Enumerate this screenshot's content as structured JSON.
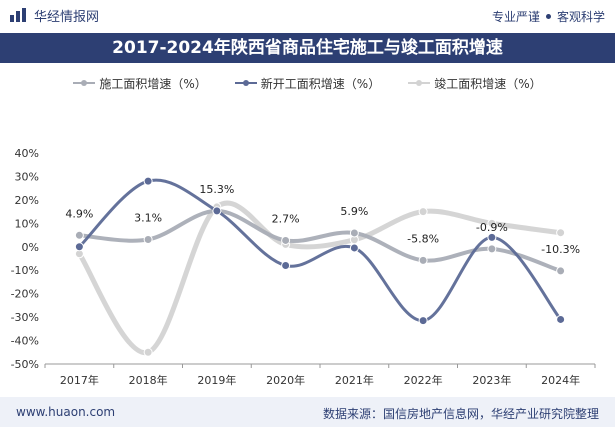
{
  "header": {
    "brand_name": "华经情报网",
    "slogan_left": "专业严谨",
    "slogan_right": "客观科学"
  },
  "footer": {
    "url": "www.huaon.com",
    "source": "数据来源：国信房地产信息网，华经产业研究院整理"
  },
  "colors": {
    "brand": "#2d3f73",
    "series_construction": "#a9adb6",
    "series_new_starts": "#5c6a96",
    "series_completion": "#d3d3d3"
  },
  "chart_data": {
    "type": "line",
    "title": "2017-2024年陕西省商品住宅施工与竣工面积增速",
    "categories": [
      "2017年",
      "2018年",
      "2019年",
      "2020年",
      "2021年",
      "2022年",
      "2023年",
      "2024年"
    ],
    "y_ticks": [
      "40%",
      "30%",
      "20%",
      "10%",
      "0%",
      "-10%",
      "-20%",
      "-30%",
      "-40%",
      "-50%"
    ],
    "ylim": [
      -50,
      40
    ],
    "series": [
      {
        "name": "施工面积增速（%）",
        "values": [
          4.9,
          3.1,
          15.3,
          2.7,
          5.9,
          -5.8,
          -0.9,
          -10.3
        ],
        "labels": [
          "4.9%",
          "3.1%",
          "15.3%",
          "2.7%",
          "5.9%",
          "-5.8%",
          "-0.9%",
          "-10.3%"
        ]
      },
      {
        "name": "新开工面积增速（%）",
        "values": [
          0,
          28,
          15.3,
          -8,
          -0.5,
          -31.5,
          4,
          -31
        ]
      },
      {
        "name": "竣工面积增速（%）",
        "values": [
          -3,
          -45,
          17,
          1,
          3,
          15,
          10,
          6
        ]
      }
    ]
  }
}
